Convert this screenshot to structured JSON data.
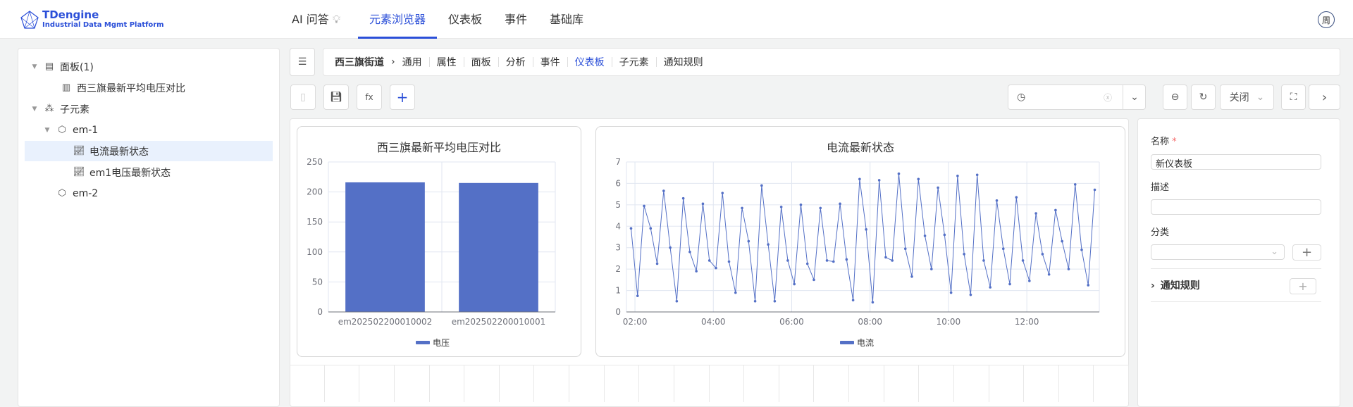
{
  "header": {
    "logo_title": "TDengine",
    "logo_subtitle": "Industrial Data Mgmt Platform",
    "nav": [
      {
        "label": "AI 问答",
        "icon": "lightbulb-icon"
      },
      {
        "label": "元素浏览器",
        "active": true
      },
      {
        "label": "仪表板"
      },
      {
        "label": "事件"
      },
      {
        "label": "基础库"
      }
    ],
    "avatar": "周"
  },
  "tree": [
    {
      "label": "面板(1)",
      "icon": "panel-icon",
      "expanded": true
    },
    {
      "label": "西三旗最新平均电压对比",
      "icon": "bar-chart-icon"
    },
    {
      "label": "子元素",
      "icon": "cluster-icon",
      "expanded": true
    },
    {
      "label": "em-1",
      "icon": "cube-icon",
      "expanded": true
    },
    {
      "label": "电流最新状态",
      "icon": "line-chart-icon",
      "selected": true
    },
    {
      "label": "em1电压最新状态",
      "icon": "line-chart-icon"
    },
    {
      "label": "em-2",
      "icon": "cube-icon"
    }
  ],
  "breadcrumb": {
    "root": "西三旗街道",
    "tabs": [
      "通用",
      "属性",
      "面板",
      "分析",
      "事件",
      "仪表板",
      "子元素",
      "通知规则"
    ],
    "active": "仪表板"
  },
  "toolbar": {
    "time_value": "",
    "refresh_select": "关闭"
  },
  "form": {
    "name_label": "名称",
    "name_value": "新仪表板",
    "desc_label": "描述",
    "desc_value": "",
    "category_label": "分类",
    "category_value": "",
    "notify_label": "通知规则"
  },
  "colors": {
    "accent": "#2b4fd8",
    "series": "#5470c6"
  },
  "chart_data": [
    {
      "type": "bar",
      "title": "西三旗最新平均电压对比",
      "categories": [
        "em202502200010002",
        "em202502200010001"
      ],
      "series": [
        {
          "name": "电压",
          "values": [
            216,
            215
          ]
        }
      ],
      "ylim": [
        0,
        250
      ],
      "yticks": [
        0,
        50,
        100,
        150,
        200,
        250
      ],
      "grid": true,
      "legend": "bottom"
    },
    {
      "type": "line",
      "title": "电流最新状态",
      "x_start": "01:54",
      "x_step_minutes": 10,
      "xlim": [
        "01:47",
        "13:51"
      ],
      "xticks": [
        "02:00",
        "04:00",
        "06:00",
        "08:00",
        "10:00",
        "12:00"
      ],
      "ylim": [
        0,
        7
      ],
      "yticks": [
        0,
        1,
        2,
        3,
        4,
        5,
        6,
        7
      ],
      "grid": true,
      "legend": "bottom",
      "series": [
        {
          "name": "电流",
          "values": [
            3.9,
            0.75,
            4.95,
            3.9,
            2.25,
            5.65,
            3.0,
            0.5,
            5.3,
            2.8,
            1.9,
            5.05,
            2.4,
            2.05,
            5.55,
            2.35,
            0.9,
            4.85,
            3.3,
            0.5,
            5.9,
            3.15,
            0.5,
            4.9,
            2.4,
            1.3,
            5.0,
            2.25,
            1.5,
            4.85,
            2.4,
            2.35,
            5.05,
            2.45,
            0.55,
            6.2,
            3.85,
            0.45,
            6.15,
            2.55,
            2.4,
            6.45,
            2.95,
            1.65,
            6.2,
            3.55,
            2.0,
            5.8,
            3.6,
            0.9,
            6.35,
            2.7,
            0.8,
            6.4,
            2.4,
            1.15,
            5.2,
            2.95,
            1.3,
            5.35,
            2.4,
            1.45,
            4.6,
            2.7,
            1.75,
            4.75,
            3.3,
            2.0,
            5.95,
            2.9,
            1.25,
            5.7
          ]
        }
      ]
    }
  ]
}
